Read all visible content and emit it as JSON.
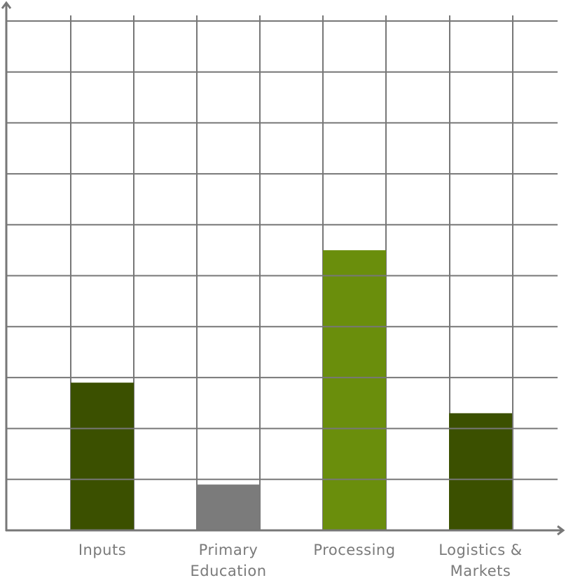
{
  "chart_data": {
    "type": "bar",
    "categories": [
      "Inputs",
      "Primary Education",
      "Processing",
      "Logistics & Markets"
    ],
    "values": [
      2.9,
      0.9,
      5.5,
      2.3
    ],
    "colors": [
      "#3b5000",
      "#7b7b7b",
      "#6a8e0c",
      "#3b5000"
    ],
    "ylim": [
      0,
      10
    ],
    "yticks": [
      1,
      2,
      3,
      4,
      5,
      6,
      7,
      8,
      9,
      10
    ],
    "grid": true
  }
}
